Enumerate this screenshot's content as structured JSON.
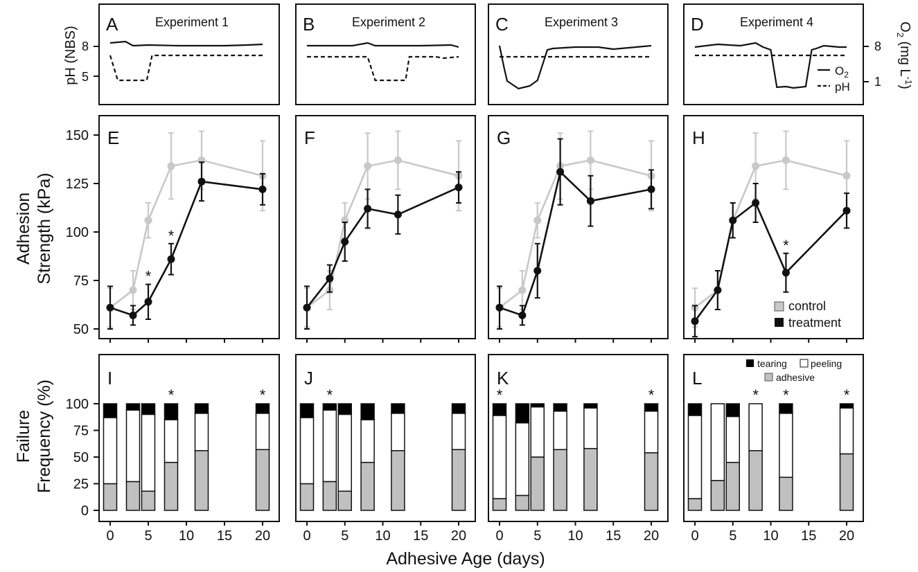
{
  "figure": {
    "x_axis_label": "Adhesive Age (days)",
    "row_labels": {
      "ph_left": "pH (NBS)",
      "o2_right_main": "O",
      "o2_right_sub": "2",
      "o2_right_unit": " (mg L",
      "o2_right_exp": "-1",
      "o2_right_close": ")",
      "adhesion_line1": "Adhesion",
      "adhesion_line2": "Strength (kPa)",
      "failure_line1": "Failure",
      "failure_line2": "Frequency (%)"
    },
    "legend_strength": {
      "control": "control",
      "treatment": "treatment"
    },
    "legend_failure": {
      "tearing": "tearing",
      "peeling": "peeling",
      "adhesive": "adhesive"
    },
    "legend_env": {
      "o2": "O",
      "o2_sub": "2",
      "ph": "pH"
    },
    "colors": {
      "control": "#c8c8c8",
      "treatment": "#111111",
      "adhesive": "#c0c0c0",
      "peeling": "#ffffff",
      "tearing": "#000000"
    }
  },
  "chart_data": [
    {
      "type": "line",
      "row": "environment",
      "yticks_left": [
        "8",
        "5"
      ],
      "yticks_right": [
        "8",
        "1"
      ],
      "panels": [
        {
          "letter": "A",
          "title": "Experiment 1",
          "o2": "constant ~8",
          "ph": "reduced from day ~1 to ~5, ~8 otherwise"
        },
        {
          "letter": "B",
          "title": "Experiment 2",
          "o2": "constant ~8",
          "ph": "reduced from day ~9 to ~13"
        },
        {
          "letter": "C",
          "title": "Experiment 3",
          "o2": "reduced (hypoxia) day ~0 to ~7",
          "ph": "constant ~8"
        },
        {
          "letter": "D",
          "title": "Experiment 4",
          "o2": "reduced (hypoxia) day ~9 to ~15",
          "ph": "constant ~8"
        }
      ]
    },
    {
      "type": "line",
      "row": "adhesion_strength",
      "x": [
        0,
        3,
        5,
        8,
        12,
        20
      ],
      "xlim": [
        -1,
        21
      ],
      "ylim": [
        45,
        160
      ],
      "yticks": [
        50,
        75,
        100,
        125,
        150
      ],
      "control": {
        "name": "control",
        "values": [
          61,
          70,
          106,
          134,
          137,
          129
        ],
        "err": [
          10,
          10,
          9,
          17,
          15,
          18
        ]
      },
      "panels": [
        {
          "letter": "E",
          "treatment": [
            61,
            57,
            64,
            86,
            126,
            122
          ],
          "err": [
            11,
            5,
            9,
            8,
            10,
            8
          ],
          "stars": [
            5,
            8
          ]
        },
        {
          "letter": "F",
          "treatment": [
            61,
            76,
            95,
            112,
            109,
            123
          ],
          "err": [
            11,
            7,
            10,
            10,
            10,
            8
          ],
          "stars": []
        },
        {
          "letter": "G",
          "treatment": [
            61,
            57,
            80,
            131,
            116,
            122
          ],
          "err": [
            11,
            5,
            14,
            17,
            13,
            10
          ],
          "stars": []
        },
        {
          "letter": "H",
          "treatment": [
            54,
            70,
            106,
            115,
            79,
            111
          ],
          "err": [
            8,
            10,
            9,
            10,
            10,
            9
          ],
          "stars": [
            12
          ]
        }
      ]
    },
    {
      "type": "bar",
      "row": "failure_frequency",
      "stacked": true,
      "x": [
        0,
        3,
        5,
        8,
        12,
        20
      ],
      "xticks": [
        0,
        5,
        10,
        15,
        20
      ],
      "ylim": [
        0,
        100
      ],
      "yticks": [
        0,
        25,
        50,
        75,
        100
      ],
      "panels": [
        {
          "letter": "I",
          "adhesive": [
            25,
            27,
            18,
            45,
            56,
            57
          ],
          "peeling": [
            62,
            67,
            72,
            40,
            35,
            34
          ],
          "tearing": [
            13,
            6,
            10,
            15,
            9,
            9
          ],
          "stars": [
            8,
            20
          ]
        },
        {
          "letter": "J",
          "adhesive": [
            25,
            27,
            18,
            45,
            56,
            57
          ],
          "peeling": [
            62,
            67,
            72,
            40,
            35,
            34
          ],
          "tearing": [
            13,
            6,
            10,
            15,
            9,
            9
          ],
          "stars": [
            3
          ]
        },
        {
          "letter": "K",
          "adhesive": [
            11,
            14,
            50,
            57,
            58,
            54
          ],
          "peeling": [
            78,
            68,
            47,
            36,
            38,
            39
          ],
          "tearing": [
            11,
            18,
            3,
            7,
            4,
            7
          ],
          "stars": [
            0,
            20
          ]
        },
        {
          "letter": "L",
          "adhesive": [
            11,
            28,
            45,
            56,
            31,
            53
          ],
          "peeling": [
            78,
            72,
            43,
            44,
            60,
            43
          ],
          "tearing": [
            11,
            0,
            12,
            0,
            9,
            4
          ],
          "stars": [
            8,
            12,
            20
          ]
        }
      ]
    }
  ]
}
